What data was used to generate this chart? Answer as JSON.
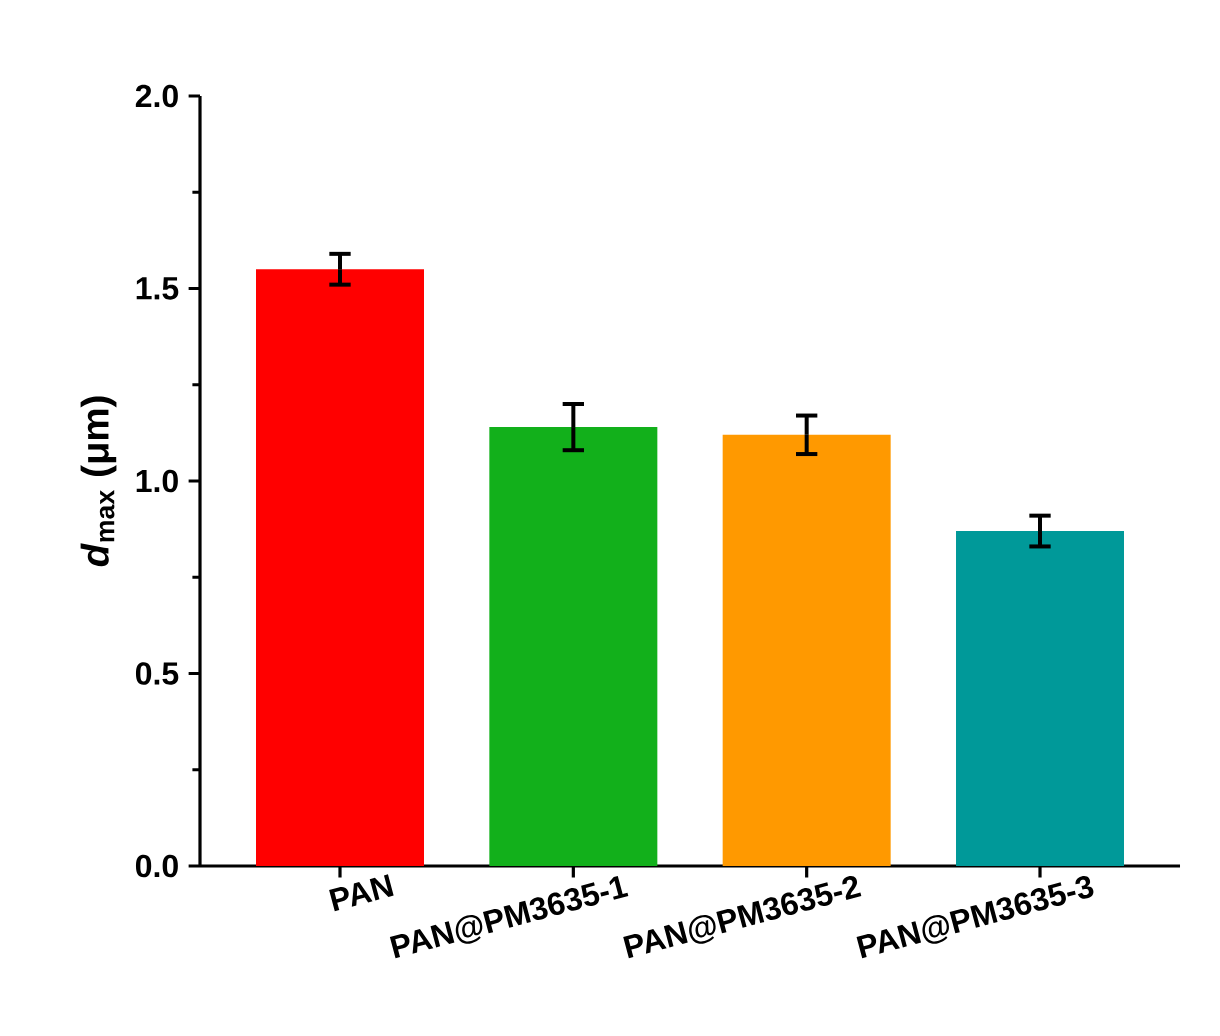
{
  "chart_data": {
    "type": "bar",
    "ylabel": "*d*$_{max}$ (μm)",
    "categories": [
      "PAN",
      "PAN@PM3635-1",
      "PAN@PM3635-2",
      "PAN@PM3635-3"
    ],
    "values": [
      1.55,
      1.14,
      1.12,
      0.87
    ],
    "errors": [
      0.04,
      0.06,
      0.05,
      0.04
    ],
    "colors": [
      "#ff0000",
      "#12b01b",
      "#ff9900",
      "#009999"
    ],
    "ylim": [
      0,
      2
    ],
    "yticks": [
      {
        "value": 0,
        "label": "0.0"
      },
      {
        "value": 0.5,
        "label": "0.5"
      },
      {
        "value": 1,
        "label": "1.0"
      },
      {
        "value": 1.5,
        "label": "1.5"
      },
      {
        "value": 2,
        "label": "2.0"
      }
    ],
    "grid": false
  }
}
